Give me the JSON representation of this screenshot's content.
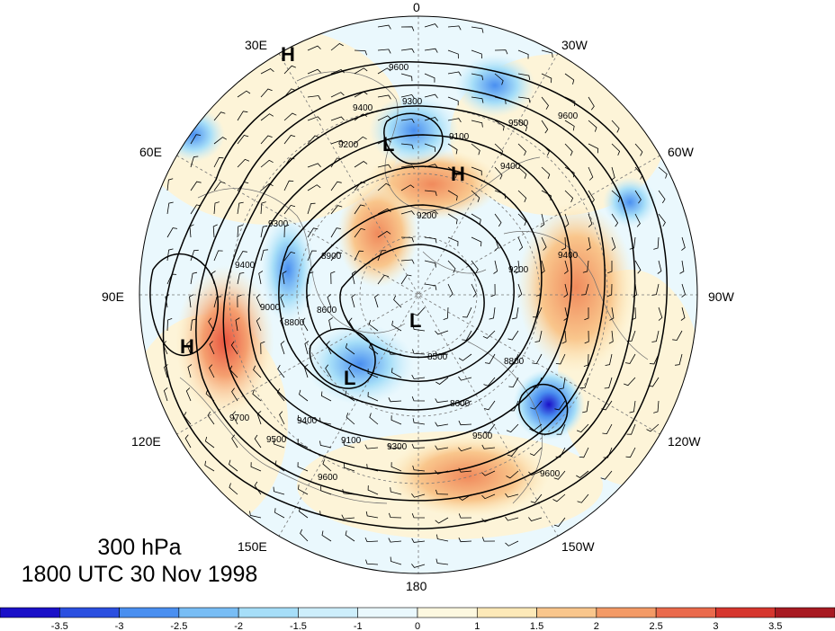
{
  "title": {
    "level": "300 hPa",
    "datetime": "1800 UTC 30 Nov 1998"
  },
  "longitude_labels": {
    "n": "0",
    "ne": "30W",
    "ene": "60W",
    "e": "90W",
    "ese": "120W",
    "se": "150W",
    "s": "180",
    "sw": "150E",
    "wsw": "120E",
    "w": "90E",
    "wnw": "60E",
    "nw": "30E"
  },
  "markers": [
    {
      "text": "H",
      "name": "high-marker-nw"
    },
    {
      "text": "L",
      "name": "low-marker-north"
    },
    {
      "text": "H",
      "name": "high-marker-europe"
    },
    {
      "text": "L",
      "name": "low-marker-pole"
    },
    {
      "text": "H",
      "name": "high-marker-asia"
    },
    {
      "text": "L",
      "name": "low-marker-siberia"
    }
  ],
  "contour_labels": [
    "9600",
    "9300",
    "9400",
    "9500",
    "9600",
    "9200",
    "9400",
    "9200",
    "9100",
    "9300",
    "9400",
    "8900",
    "8600",
    "8800",
    "9000",
    "9500",
    "9400",
    "9100",
    "9300",
    "9600",
    "9500",
    "8500",
    "8600",
    "8800",
    "9200",
    "9700",
    "9400",
    "9600"
  ],
  "colorbar": {
    "colors": [
      "#1a10c8",
      "#2b4fe0",
      "#4a8ff0",
      "#78bdf5",
      "#a6def8",
      "#cdeefb",
      "#eaf8fd",
      "#fdf8e0",
      "#fde9b8",
      "#f9c68c",
      "#f39a66",
      "#ea6a4c",
      "#d6362e",
      "#a81a22"
    ],
    "tick_labels": [
      "-3.5",
      "-3",
      "-2.5",
      "-2",
      "-1.5",
      "-1",
      "0",
      "1",
      "1.5",
      "2",
      "2.5",
      "3",
      "3.5"
    ]
  }
}
